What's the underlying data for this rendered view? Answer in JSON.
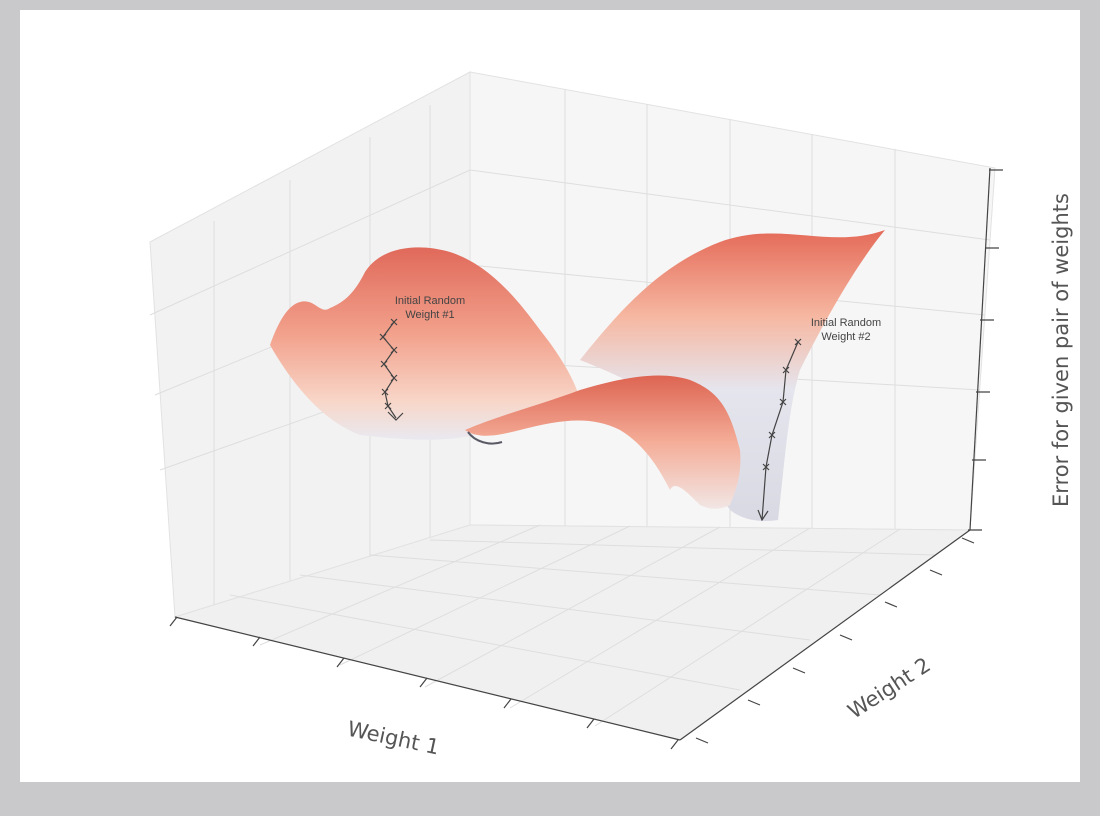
{
  "chart_data": {
    "type": "surface",
    "xlabel": "Weight 1",
    "ylabel": "Weight 2",
    "zlabel": "Error for given pair of weights",
    "tick_labels": "none",
    "grid": true,
    "colormap": [
      "#e8e8f0",
      "#f8c8b6",
      "#e06a58"
    ],
    "annotations": [
      {
        "id": "weight1",
        "line1": "Initial Random",
        "line2": "Weight #1",
        "path_points": 7,
        "end": "arrow"
      },
      {
        "id": "weight2",
        "line1": "Initial Random",
        "line2": "Weight #2",
        "path_points": 6,
        "end": "arrow"
      }
    ]
  }
}
